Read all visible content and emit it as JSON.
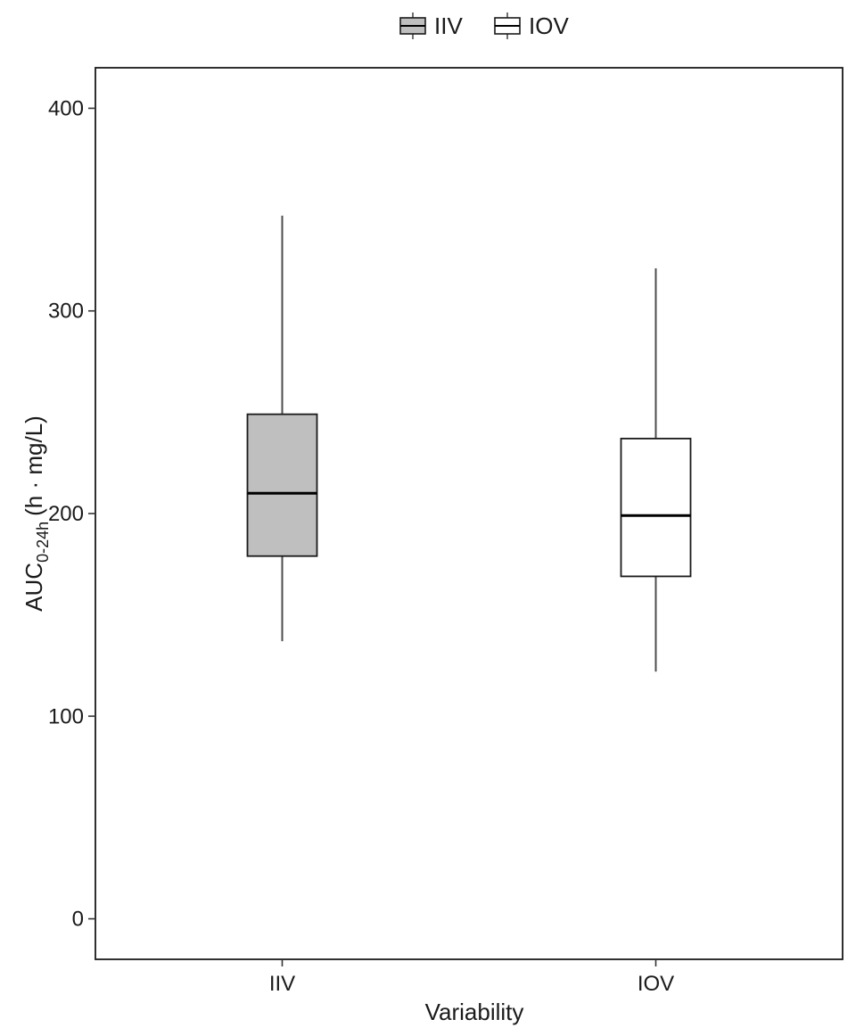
{
  "chart_data": {
    "type": "box",
    "xlabel": "Variability",
    "ylabel_main": "AUC",
    "ylabel_subscript": "0-24h",
    "ylabel_unit": "(h · mg/L)",
    "ylim": [
      -20,
      420
    ],
    "yticks": [
      0,
      100,
      200,
      300,
      400
    ],
    "categories": [
      "IIV",
      "IOV"
    ],
    "legend": {
      "placement": "top-center",
      "entries": [
        "IIV",
        "IOV"
      ]
    },
    "grid": false,
    "series": [
      {
        "name": "IIV",
        "category": "IIV",
        "min": 137,
        "q1": 179,
        "median": 210,
        "q3": 249,
        "max": 347,
        "fill": "#bfbfbf"
      },
      {
        "name": "IOV",
        "category": "IOV",
        "min": 122,
        "q1": 169,
        "median": 199,
        "q3": 237,
        "max": 321,
        "fill": "#ffffff"
      }
    ]
  },
  "colors": {
    "box_stroke": "#1a1a1a",
    "whisker": "#4d4d4d",
    "iiv_fill": "#bfbfbf",
    "iov_fill": "#ffffff"
  }
}
